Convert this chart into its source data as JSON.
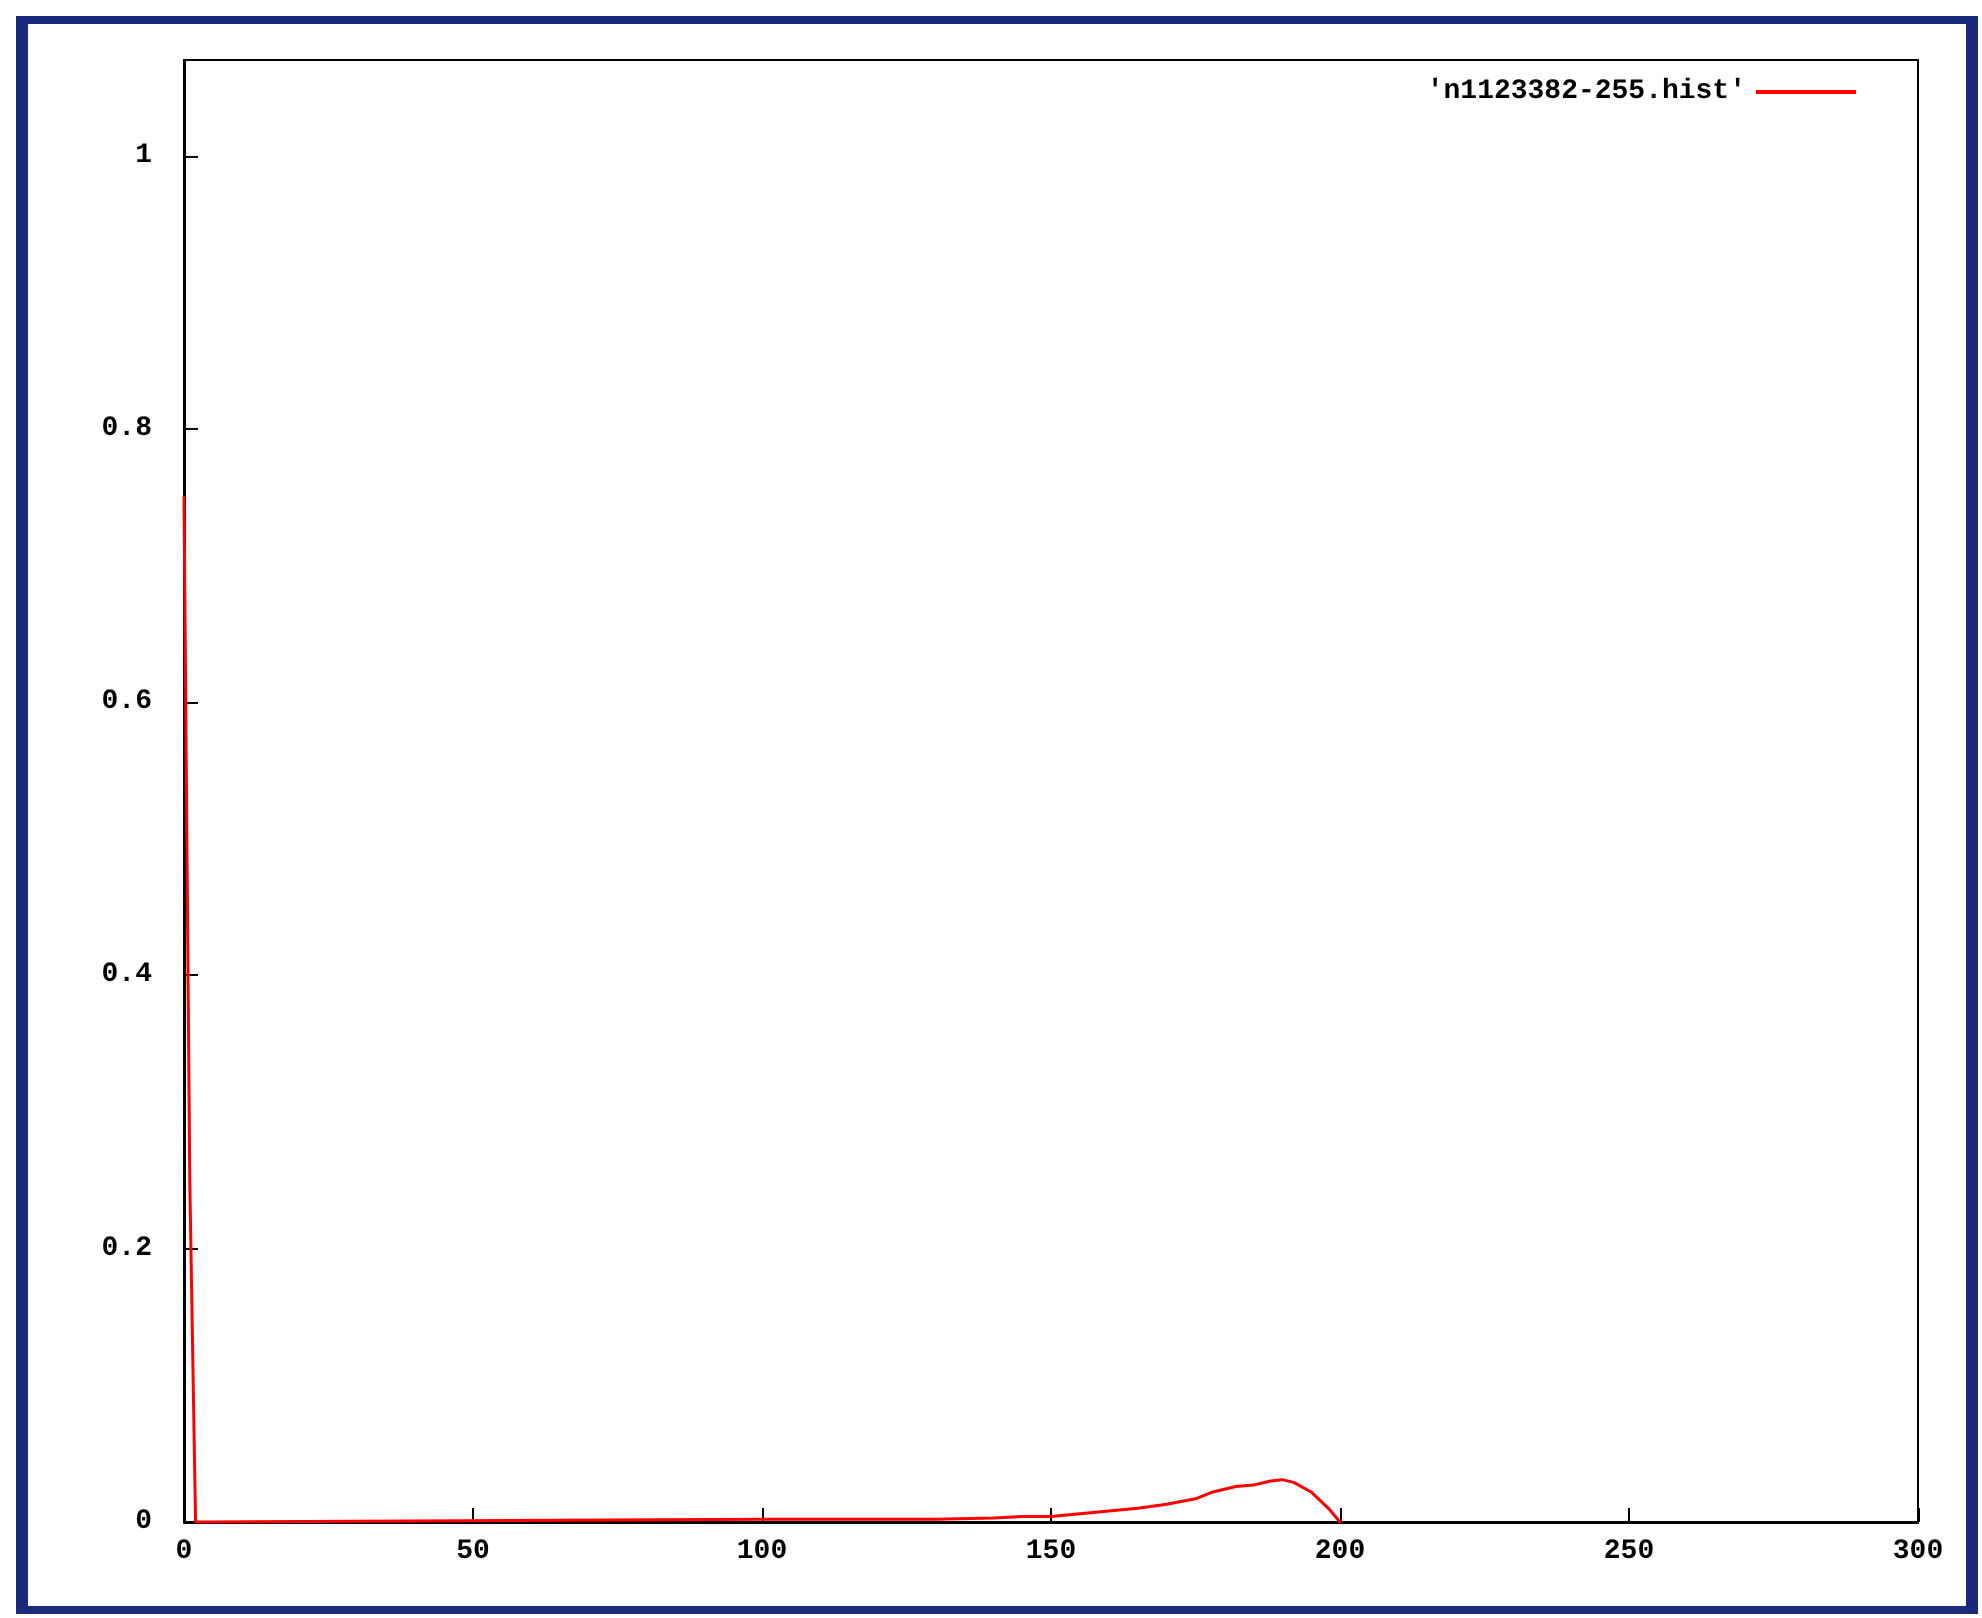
{
  "chart_data": {
    "type": "line",
    "x": [
      0,
      1,
      2,
      100,
      110,
      120,
      130,
      140,
      145,
      150,
      155,
      160,
      165,
      170,
      175,
      178,
      182,
      185,
      188,
      190,
      192,
      195,
      198,
      200
    ],
    "series": [
      {
        "name": "'n1123382-255.hist'",
        "color": "#ff0000",
        "values": [
          0.75,
          0.25,
          0,
          0.002,
          0.002,
          0.002,
          0.002,
          0.003,
          0.004,
          0.004,
          0.006,
          0.008,
          0.01,
          0.013,
          0.017,
          0.022,
          0.026,
          0.027,
          0.03,
          0.031,
          0.029,
          0.022,
          0.01,
          0
        ]
      }
    ],
    "xlim": [
      0,
      300
    ],
    "xticks": [
      0,
      50,
      100,
      150,
      200,
      250,
      300
    ],
    "ylim": [
      0,
      1.07
    ],
    "yticks": [
      0,
      0.2,
      0.4,
      0.6,
      0.8,
      1
    ],
    "grid": false,
    "legend": "top right",
    "marker": "none",
    "line_style": "solid"
  }
}
